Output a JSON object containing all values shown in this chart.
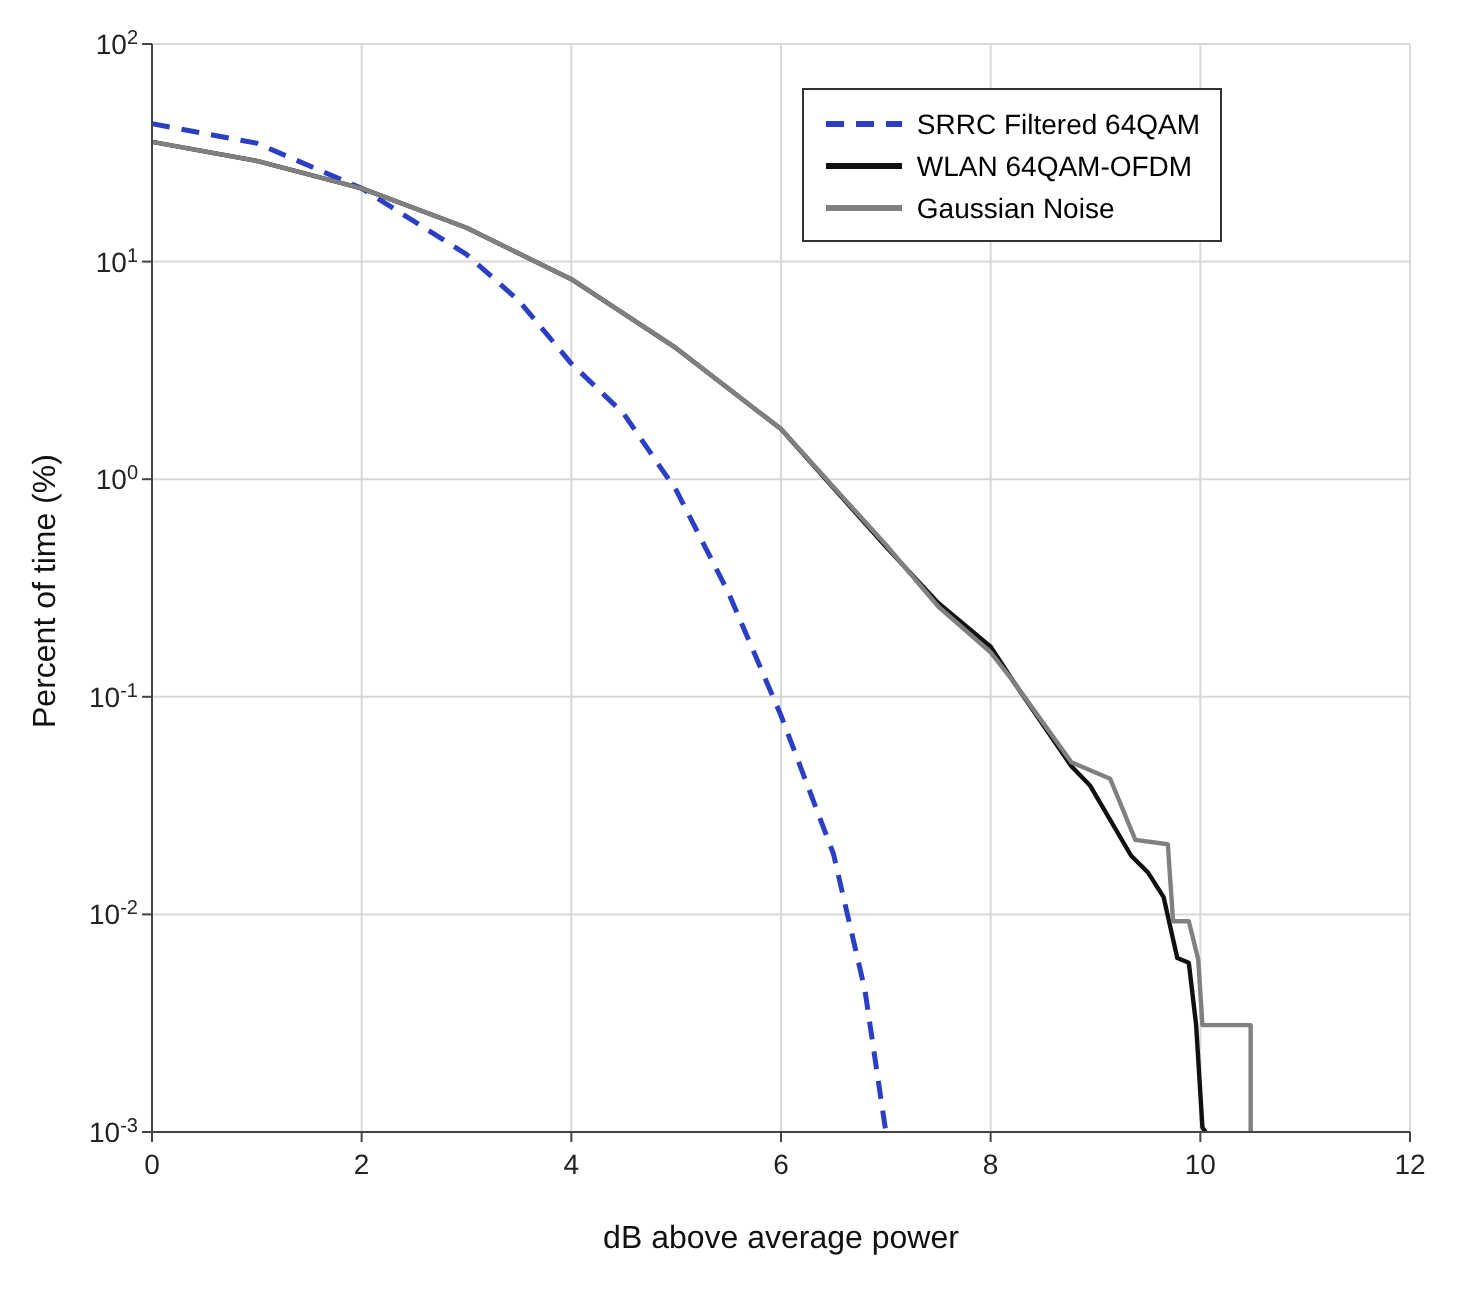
{
  "chart_data": {
    "type": "line",
    "xlabel": "dB above average power",
    "ylabel": "Percent of time (%)",
    "log": "y",
    "grid": true,
    "legend": "top right",
    "marker": "none",
    "xlim": [
      0,
      12
    ],
    "xticks": [
      0,
      2,
      4,
      6,
      8,
      10,
      12
    ],
    "ylim": [
      0.001,
      100
    ],
    "yticks": [
      {
        "value": 0.001,
        "label": "10$^{-3}$"
      },
      {
        "value": 0.01,
        "label": "10$^{-2}$"
      },
      {
        "value": 0.1,
        "label": "10$^{-1}$"
      },
      {
        "value": 1,
        "label": "10$^{0}$"
      },
      {
        "value": 10,
        "label": "10$^{1}$"
      },
      {
        "value": 100,
        "label": "10$^{2}$"
      }
    ],
    "series": [
      {
        "name": "SRRC Filtered 64QAM",
        "color": "#2b3fc4",
        "line_style": "dashed",
        "x": [
          0,
          1,
          2,
          3,
          3.5,
          4,
          4.5,
          5,
          5.5,
          6,
          6.5,
          6.8,
          7
        ],
        "values": [
          43,
          35,
          21.7,
          10.8,
          6.6,
          3.4,
          2,
          0.89,
          0.3,
          0.082,
          0.019,
          0.0045,
          0.001
        ]
      },
      {
        "name": "WLAN 64QAM-OFDM",
        "color": "#111111",
        "line_style": "solid",
        "x": [
          0,
          1,
          2,
          3,
          4,
          5,
          6,
          7,
          7.5,
          8,
          8.22,
          8.77,
          8.95,
          9.34,
          9.5,
          9.65,
          9.78,
          9.89,
          9.96,
          10.02,
          10.05
        ],
        "values": [
          35.5,
          29,
          21.7,
          14.3,
          8.3,
          4,
          1.7,
          0.49,
          0.27,
          0.17,
          0.117,
          0.048,
          0.039,
          0.0186,
          0.0156,
          0.012,
          0.0063,
          0.006,
          0.0031,
          0.00105,
          0.001
        ]
      },
      {
        "name": "Gaussian Noise",
        "color": "#808080",
        "line_style": "solid",
        "x": [
          0,
          1,
          2,
          3,
          4,
          5,
          6,
          7,
          7.5,
          8,
          8.22,
          8.77,
          9.14,
          9.38,
          9.69,
          9.74,
          9.89,
          9.98,
          10.02,
          10.48,
          10.48
        ],
        "values": [
          35.5,
          29,
          21.7,
          14.3,
          8.3,
          4,
          1.7,
          0.5,
          0.26,
          0.16,
          0.117,
          0.05,
          0.042,
          0.022,
          0.021,
          0.0093,
          0.0093,
          0.0062,
          0.0031,
          0.0031,
          0.001
        ]
      }
    ]
  }
}
